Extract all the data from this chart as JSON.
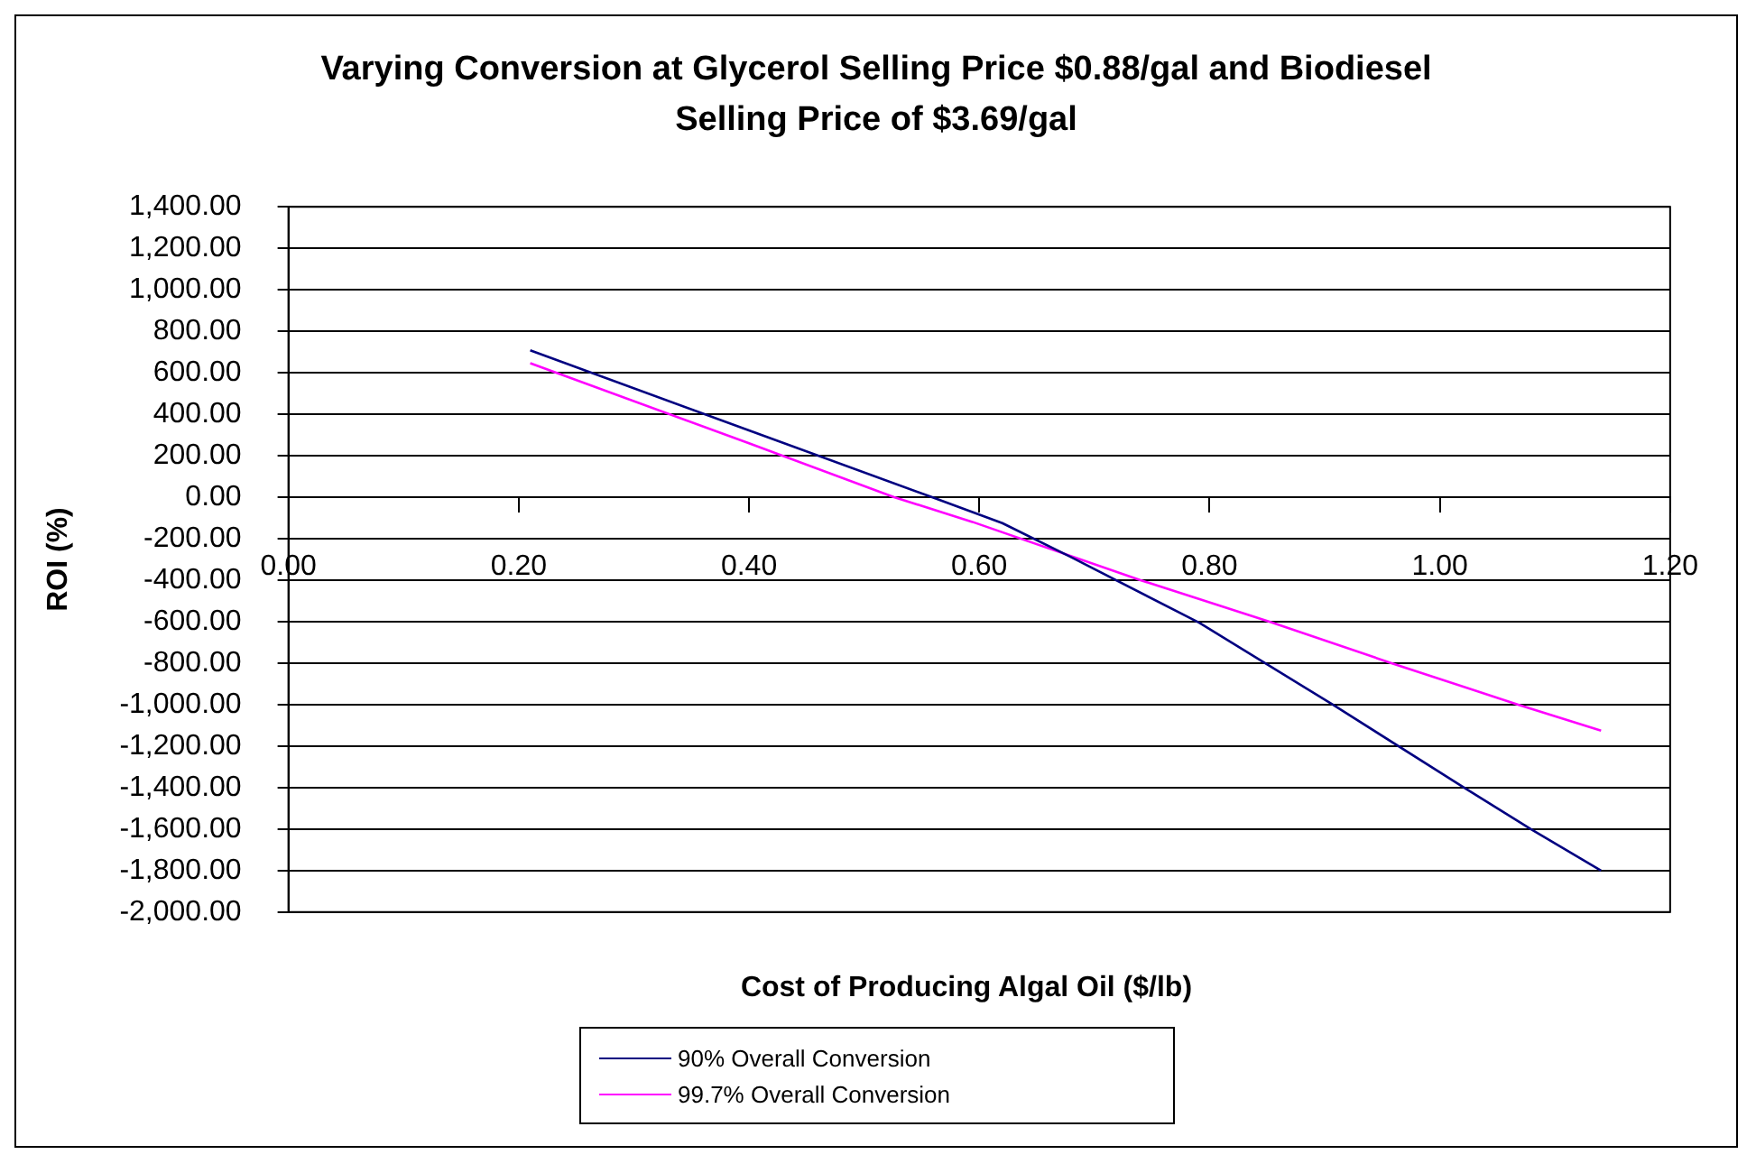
{
  "chart_data": {
    "type": "line",
    "title": "Varying Conversion at Glycerol Selling Price $0.88/gal and Biodiesel Selling Price of $3.69/gal",
    "xlabel": "Cost of Producing Algal Oil ($/lb)",
    "ylabel": "ROI (%)",
    "series": [
      {
        "name": "90% Overall Conversion",
        "color": "#000080",
        "x": [
          0.21,
          0.4,
          0.559,
          0.62,
          0.68,
          0.791,
          0.907,
          1.021,
          1.079,
          1.14
        ],
        "values": [
          708,
          322,
          0,
          -125,
          -290,
          -605,
          -1000,
          -1400,
          -1600,
          -1800
        ]
      },
      {
        "name": "99.7% Overall Conversion",
        "color": "#ff00ff",
        "x": [
          0.21,
          0.4,
          0.526,
          0.594,
          0.74,
          0.852,
          0.958,
          1.068,
          1.14
        ],
        "values": [
          646,
          260,
          0,
          -119,
          -400,
          -600,
          -800,
          -1000,
          -1125
        ]
      }
    ],
    "xlim": [
      0,
      1.2
    ],
    "xticks": [
      {
        "value": 0,
        "label": "0.00"
      },
      {
        "value": 0.2,
        "label": "0.20"
      },
      {
        "value": 0.4,
        "label": "0.40"
      },
      {
        "value": 0.6,
        "label": "0.60"
      },
      {
        "value": 0.8,
        "label": "0.80"
      },
      {
        "value": 1.0,
        "label": "1.00"
      },
      {
        "value": 1.2,
        "label": "1.20"
      }
    ],
    "ylim": [
      -2000,
      1400
    ],
    "yticks": [
      {
        "value": -2000,
        "label": "-2,000.00"
      },
      {
        "value": -1800,
        "label": "-1,800.00"
      },
      {
        "value": -1600,
        "label": "-1,600.00"
      },
      {
        "value": -1400,
        "label": "-1,400.00"
      },
      {
        "value": -1200,
        "label": "-1,200.00"
      },
      {
        "value": -1000,
        "label": "-1,000.00"
      },
      {
        "value": -800,
        "label": "-800.00"
      },
      {
        "value": -600,
        "label": "-600.00"
      },
      {
        "value": -400,
        "label": "-400.00"
      },
      {
        "value": -200,
        "label": "-200.00"
      },
      {
        "value": 0,
        "label": "0.00"
      },
      {
        "value": 200,
        "label": "200.00"
      },
      {
        "value": 400,
        "label": "400.00"
      },
      {
        "value": 600,
        "label": "600.00"
      },
      {
        "value": 800,
        "label": "800.00"
      },
      {
        "value": 1000,
        "label": "1,000.00"
      },
      {
        "value": 1200,
        "label": "1,200.00"
      },
      {
        "value": 1400,
        "label": "1,400.00"
      }
    ],
    "grid": "y",
    "legend": "bottom",
    "marker": "none",
    "line_style": "solid"
  }
}
